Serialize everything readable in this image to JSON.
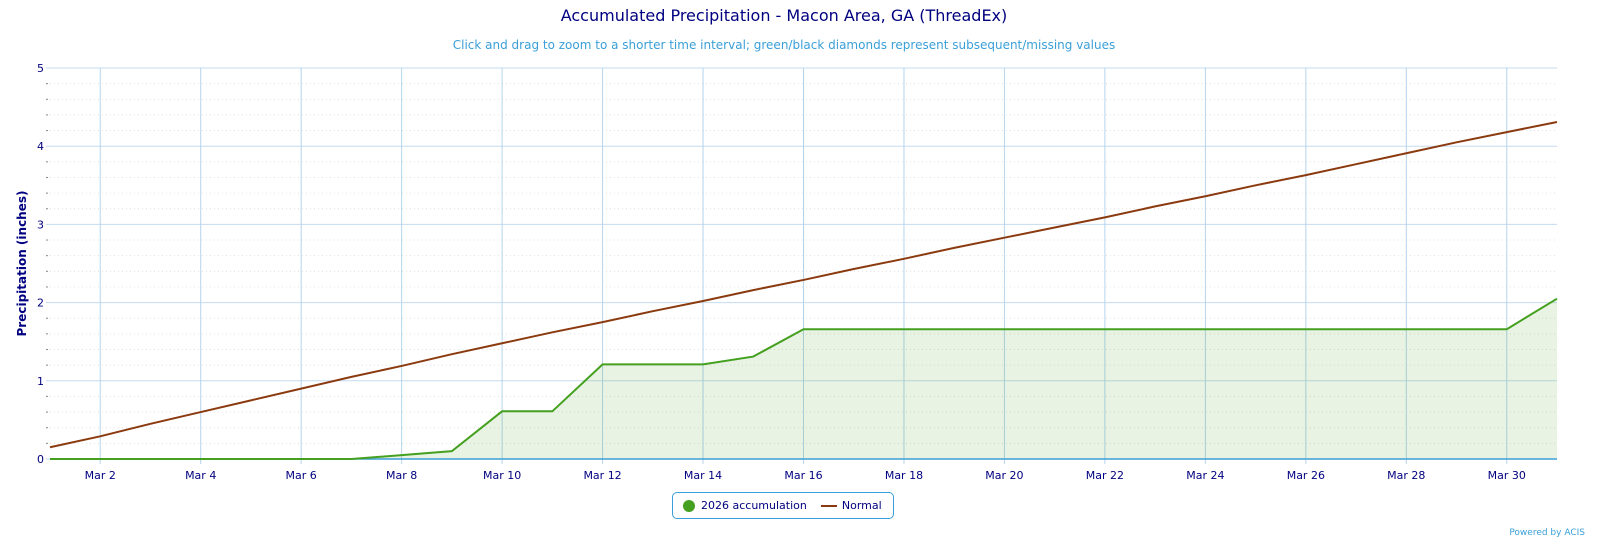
{
  "chart_data": {
    "type": "area",
    "title": "Accumulated Precipitation - Macon Area, GA (ThreadEx)",
    "subtitle": "Click and drag to zoom to a shorter time interval; green/black diamonds represent subsequent/missing values",
    "xlabel": "",
    "ylabel": "Precipitation (inches)",
    "ylim": [
      0,
      5
    ],
    "yticks": [
      "0",
      "1",
      "2",
      "3",
      "4",
      "5"
    ],
    "xticks": [
      "Mar 2",
      "Mar 4",
      "Mar 6",
      "Mar 8",
      "Mar 10",
      "Mar 12",
      "Mar 14",
      "Mar 16",
      "Mar 18",
      "Mar 20",
      "Mar 22",
      "Mar 24",
      "Mar 26",
      "Mar 28",
      "Mar 30"
    ],
    "x_days": [
      1,
      2,
      3,
      4,
      5,
      6,
      7,
      8,
      9,
      10,
      11,
      12,
      13,
      14,
      15,
      16,
      17,
      18,
      19,
      20,
      21,
      22,
      23,
      24,
      25,
      26,
      27,
      28,
      29,
      30,
      31
    ],
    "series": [
      {
        "name": "2026 accumulation",
        "color": "#44a01e",
        "values": [
          0,
          0,
          0,
          0,
          0,
          0,
          0,
          0.05,
          0.1,
          0.61,
          0.61,
          1.21,
          1.21,
          1.21,
          1.31,
          1.66,
          1.66,
          1.66,
          1.66,
          1.66,
          1.66,
          1.66,
          1.66,
          1.66,
          1.66,
          1.66,
          1.66,
          1.66,
          1.66,
          1.66,
          2.05
        ]
      },
      {
        "name": "Normal",
        "color": "#8b3a0f",
        "values": [
          0.15,
          0.29,
          0.45,
          0.6,
          0.75,
          0.9,
          1.05,
          1.19,
          1.34,
          1.48,
          1.62,
          1.75,
          1.89,
          2.02,
          2.16,
          2.29,
          2.43,
          2.56,
          2.7,
          2.83,
          2.96,
          3.09,
          3.23,
          3.36,
          3.5,
          3.63,
          3.77,
          3.91,
          4.05,
          4.18,
          4.31
        ]
      }
    ],
    "grid": true,
    "legend": "bottom-center"
  },
  "credit": "Powered by ACIS"
}
